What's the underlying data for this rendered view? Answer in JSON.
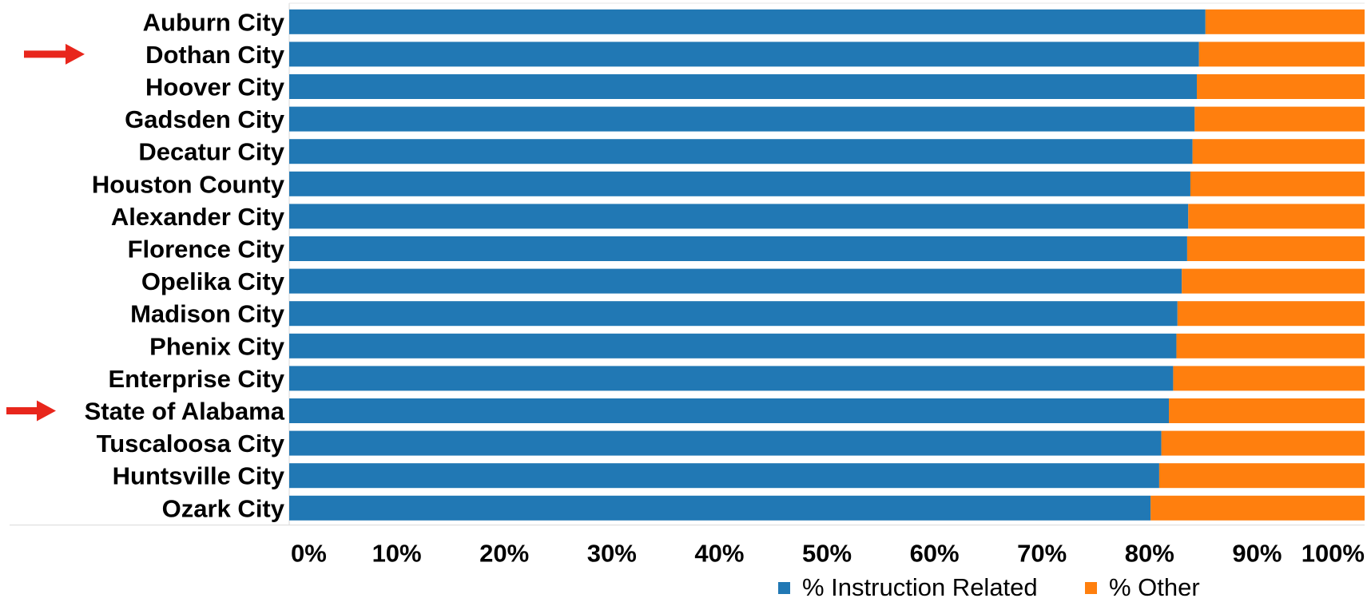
{
  "chart_data": {
    "type": "bar",
    "orientation": "horizontal",
    "stacked": true,
    "percent_stacked": true,
    "categories": [
      "Auburn City",
      "Dothan City",
      "Hoover City",
      "Gadsden City",
      "Decatur City",
      "Houston County",
      "Alexander City",
      "Florence City",
      "Opelika City",
      "Madison City",
      "Phenix City",
      "Enterprise City",
      "State of Alabama",
      "Tuscaloosa City",
      "Huntsville City",
      "Ozark City"
    ],
    "series": [
      {
        "name": "% Instruction Related",
        "color": "#2178b4",
        "values": [
          85.2,
          84.6,
          84.4,
          84.2,
          84.0,
          83.8,
          83.6,
          83.5,
          83.0,
          82.6,
          82.5,
          82.2,
          81.8,
          81.1,
          80.9,
          80.1
        ]
      },
      {
        "name": "% Other",
        "color": "#ff7f0e",
        "values": [
          14.8,
          15.4,
          15.6,
          15.8,
          16.0,
          16.2,
          16.4,
          16.5,
          17.0,
          17.4,
          17.5,
          17.8,
          18.2,
          18.9,
          19.1,
          19.9
        ]
      }
    ],
    "x_ticks": [
      "0%",
      "10%",
      "20%",
      "30%",
      "40%",
      "50%",
      "60%",
      "70%",
      "80%",
      "90%",
      "100%"
    ],
    "xlim": [
      0,
      100
    ],
    "grid": false,
    "legend": {
      "position": "bottom-right"
    },
    "annotations": [
      {
        "type": "arrow",
        "color": "#e8261c",
        "target": "Dothan City"
      },
      {
        "type": "arrow",
        "color": "#e8261c",
        "target": "State of Alabama"
      }
    ]
  }
}
